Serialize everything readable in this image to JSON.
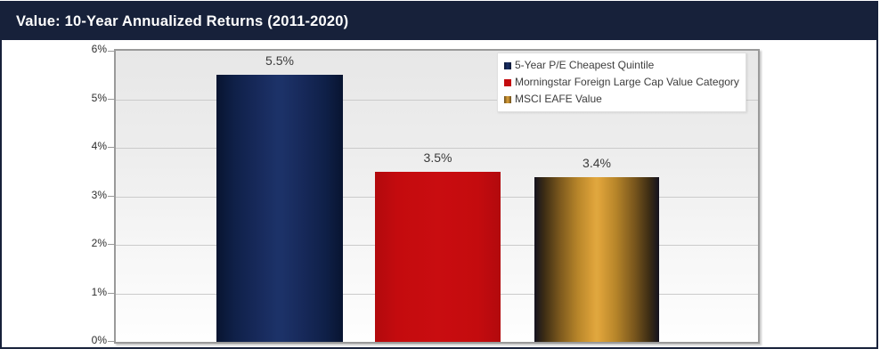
{
  "header": {
    "title": "Value: 10-Year Annualized Returns (2011-2020)"
  },
  "colors": {
    "header_bg": "#17213A",
    "card_border": "#17213A",
    "bar_navy": "#1B3067",
    "bar_red": "#C40B0E",
    "bar_gold": "#DCA139",
    "plot_border": "#9A9A9A",
    "gridline": "#CBCBCB",
    "value_label_text": "#3A3A3A"
  },
  "chart_data": {
    "type": "bar",
    "title": "Value: 10-Year Annualized Returns (2011-2020)",
    "categories": [
      "5-Year P/E Cheapest Quintile",
      "Morningstar Foreign Large Cap Value Category",
      "MSCI EAFE Value"
    ],
    "values": [
      5.5,
      3.5,
      3.4
    ],
    "value_labels": [
      "5.5%",
      "3.5%",
      "3.4%"
    ],
    "unit": "%",
    "xlabel": "",
    "ylabel": "",
    "ylim": [
      0,
      6
    ],
    "ytick_labels": [
      "0%",
      "1%",
      "2%",
      "3%",
      "4%",
      "5%",
      "6%"
    ],
    "grid": true,
    "legend_position": "top-right",
    "legend": [
      {
        "label": "5-Year P/E Cheapest Quintile",
        "color": "#1B3067"
      },
      {
        "label": "Morningstar Foreign Large Cap Value Category",
        "color": "#C40B0E"
      },
      {
        "label": "MSCI EAFE Value",
        "color": "#DCA139"
      }
    ]
  }
}
